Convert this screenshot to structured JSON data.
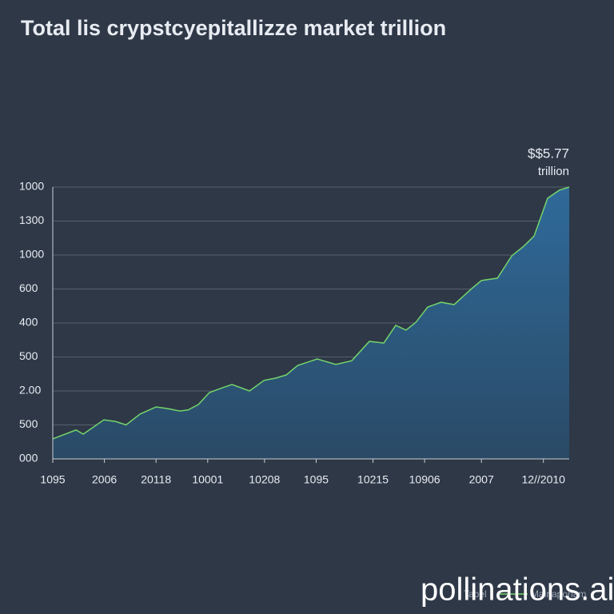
{
  "chart_data": {
    "type": "area",
    "title": "Total lis crypstcyepitallizze market trillion",
    "annotations": [
      "$$5.77",
      "trillion"
    ],
    "watermark": "pollinations.ai",
    "legend_extra": "Tapel",
    "xlim": [
      0,
      100
    ],
    "xticks": [
      {
        "value": 0,
        "label": "1095"
      },
      {
        "value": 10,
        "label": "2006"
      },
      {
        "value": 20,
        "label": "20118"
      },
      {
        "value": 30,
        "label": "10001"
      },
      {
        "value": 41,
        "label": "10208"
      },
      {
        "value": 51,
        "label": "1095"
      },
      {
        "value": 62,
        "label": "10215"
      },
      {
        "value": 72,
        "label": "10906"
      },
      {
        "value": 83,
        "label": "2007"
      },
      {
        "value": 95,
        "label": "12//2010"
      }
    ],
    "ylim": [
      0,
      8
    ],
    "yticks": [
      {
        "value": 0,
        "label": "000"
      },
      {
        "value": 1,
        "label": "500"
      },
      {
        "value": 2,
        "label": "2.00"
      },
      {
        "value": 3,
        "label": "500"
      },
      {
        "value": 4,
        "label": "400"
      },
      {
        "value": 5,
        "label": "600"
      },
      {
        "value": 6,
        "label": "1000"
      },
      {
        "value": 7,
        "label": "1300"
      },
      {
        "value": 8,
        "label": "1000"
      }
    ],
    "grid": true,
    "x": [
      0,
      4.5,
      5.9,
      9.9,
      12.2,
      14.2,
      16.9,
      20,
      22.3,
      24.6,
      26.2,
      28.2,
      30.3,
      32.4,
      34.7,
      38.1,
      40.9,
      43.2,
      45.2,
      47.4,
      51.2,
      54.8,
      57.9,
      61.3,
      64.1,
      66.4,
      68.4,
      70.3,
      72.6,
      75.2,
      77.7,
      81.1,
      83,
      86.1,
      88.9,
      91.2,
      93.2,
      95.8,
      98.1,
      100
    ],
    "series": [
      {
        "name": "Mainaponam",
        "color": "#74d46a",
        "values": [
          0.59,
          0.85,
          0.73,
          1.15,
          1.1,
          1.0,
          1.32,
          1.53,
          1.48,
          1.41,
          1.44,
          1.6,
          1.95,
          2.07,
          2.19,
          2.0,
          2.31,
          2.38,
          2.47,
          2.75,
          2.94,
          2.78,
          2.89,
          3.46,
          3.41,
          3.93,
          3.79,
          4.02,
          4.47,
          4.61,
          4.54,
          5.01,
          5.25,
          5.32,
          5.98,
          6.26,
          6.56,
          7.67,
          7.91,
          8
        ]
      }
    ]
  }
}
